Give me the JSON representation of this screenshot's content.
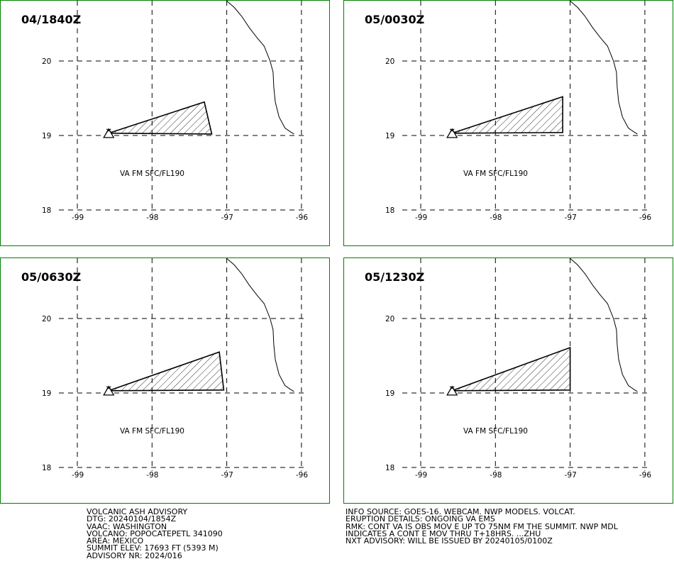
{
  "panels": [
    {
      "time": "04/1840Z",
      "polygon": [
        [
          -98.58,
          19.03
        ],
        [
          -97.3,
          19.45
        ],
        [
          -97.2,
          19.02
        ]
      ]
    },
    {
      "time": "05/0030Z",
      "polygon": [
        [
          -98.58,
          19.03
        ],
        [
          -97.1,
          19.52
        ],
        [
          -97.1,
          19.04
        ]
      ]
    },
    {
      "time": "05/0630Z",
      "polygon": [
        [
          -98.58,
          19.03
        ],
        [
          -97.1,
          19.55
        ],
        [
          -97.04,
          19.04
        ]
      ]
    },
    {
      "time": "05/1230Z",
      "polygon": [
        [
          -98.58,
          19.03
        ],
        [
          -97.0,
          19.61
        ],
        [
          -97.0,
          19.04
        ]
      ]
    }
  ],
  "va_label": "VA FM SFC/FL190",
  "volcano_symbol": "triangle-volcano-icon",
  "map": {
    "lon_ticks": [
      "-99",
      "-98",
      "-97",
      "-96"
    ],
    "lat_ticks": [
      "20",
      "19",
      "18"
    ],
    "lon_values": [
      -99,
      -98,
      -97,
      -96
    ],
    "lat_values": [
      20,
      19,
      18
    ],
    "coastline": [
      [
        -97.16,
        21.0
      ],
      [
        -97.05,
        20.85
      ],
      [
        -96.9,
        20.72
      ],
      [
        -96.8,
        20.6
      ],
      [
        -96.7,
        20.45
      ],
      [
        -96.6,
        20.32
      ],
      [
        -96.5,
        20.2
      ],
      [
        -96.42,
        20.0
      ],
      [
        -96.38,
        19.85
      ],
      [
        -96.37,
        19.65
      ],
      [
        -96.35,
        19.45
      ],
      [
        -96.3,
        19.25
      ],
      [
        -96.22,
        19.1
      ],
      [
        -96.15,
        19.05
      ],
      [
        -96.1,
        19.02
      ]
    ]
  },
  "advisory_left": [
    "VOLCANIC ASH ADVISORY",
    "DTG: 20240104/1854Z",
    "VAAC: WASHINGTON",
    "VOLCANO: POPOCATEPETL 341090",
    "AREA: MEXICO",
    "SUMMIT ELEV: 17693 FT (5393 M)",
    "ADVISORY NR: 2024/016"
  ],
  "advisory_right": [
    "INFO SOURCE: GOES-16. WEBCAM. NWP MODELS. VOLCAT.",
    "ERUPTION DETAILS: ONGOING VA EMS",
    "RMK: CONT VA IS OBS MOV E UP TO 75NM FM THE SUMMIT. NWP MDL",
    "INDICATES A CONT E MOV THRU T+18HRS. ...ZHU",
    "NXT ADVISORY: WILL BE ISSUED BY 20240105/0100Z"
  ],
  "colors": {
    "border": "#008000",
    "line": "#000000",
    "background": "#ffffff"
  }
}
